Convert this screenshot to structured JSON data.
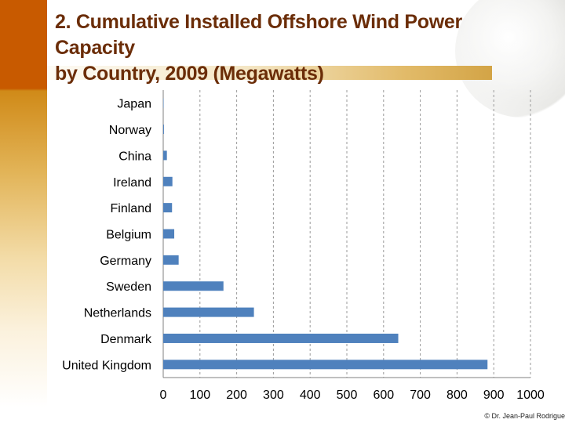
{
  "slide": {
    "title_line1": "2. Cumulative Installed Offshore Wind Power Capacity",
    "title_line2": "by Country, 2009 (Megawatts)",
    "credit": "© Dr. Jean-Paul Rodrigue"
  },
  "colors": {
    "bar": "#4f81bd",
    "title": "#6b2d08",
    "band": "#c85a00"
  },
  "chart_data": {
    "type": "bar",
    "orientation": "horizontal",
    "title": "Cumulative Installed Offshore Wind Power Capacity by Country, 2009 (Megawatts)",
    "xlabel": "",
    "ylabel": "",
    "xlim": [
      0,
      1000
    ],
    "x_ticks": [
      0,
      100,
      200,
      300,
      400,
      500,
      600,
      700,
      800,
      900,
      1000
    ],
    "grid": "vertical-dashed",
    "categories": [
      "Japan",
      "Norway",
      "China",
      "Ireland",
      "Finland",
      "Belgium",
      "Germany",
      "Sweden",
      "Netherlands",
      "Denmark",
      "United Kingdom"
    ],
    "values": [
      1,
      2,
      10,
      25,
      24,
      30,
      42,
      164,
      247,
      640,
      883
    ]
  }
}
